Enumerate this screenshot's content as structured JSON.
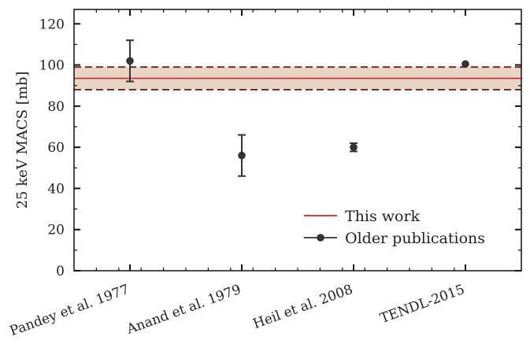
{
  "chart_data": {
    "type": "scatter",
    "title": "",
    "xlabel": "",
    "ylabel": "25 keV MACS [mb]",
    "ylim": [
      0,
      127
    ],
    "yticks": [
      0,
      20,
      40,
      60,
      80,
      100,
      120
    ],
    "grid": false,
    "legend_position": "bottom-right",
    "categories": [
      "Pandey et al. 1977",
      "Anand et al. 1979",
      "Heil et al. 2008",
      "TENDL-2015"
    ],
    "series": [
      {
        "name": "Older publications",
        "color": "#333333",
        "points": [
          {
            "category": "Pandey et al. 1977",
            "y": 102,
            "err": 10
          },
          {
            "category": "Anand et al. 1979",
            "y": 56,
            "err": 10
          },
          {
            "category": "Heil et al. 2008",
            "y": 60,
            "err": 2
          },
          {
            "category": "TENDL-2015",
            "y": 100.5,
            "err": 0
          }
        ]
      }
    ],
    "band": {
      "name": "This work",
      "value": 93.5,
      "lower": 88,
      "upper": 99,
      "line_color": "#e02020",
      "fill_color": "#e6d6c6",
      "bound_color": "#7a1a1a"
    }
  }
}
